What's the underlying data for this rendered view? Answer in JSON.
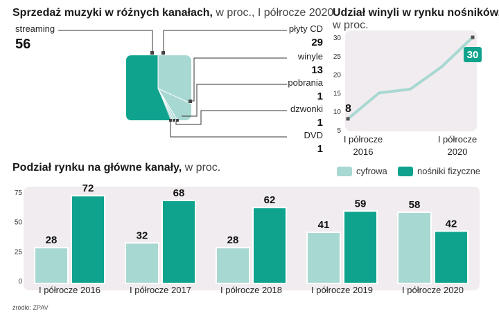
{
  "colors": {
    "digital": "#a8d8d2",
    "physical": "#0fa38e",
    "panel_bg": "#f1ecef",
    "line": "#a8d8d2",
    "leader": "#333333"
  },
  "panel1": {
    "title_bold": "Sprzedaż muzyki w różnych kanałach,",
    "title_rest": " w proc., I półrocze 2020"
  },
  "panel2": {
    "title_bold": "Udział winyli w rynku nośników,",
    "title_rest": "w proc."
  },
  "panel3": {
    "title_bold": "Podział rynku na główne kanały,",
    "title_rest": " w proc."
  },
  "legend": {
    "digital": "cyfrowa",
    "physical": "nośniki fizyczne"
  },
  "source": "źródło: ZPAV",
  "chart_data": [
    {
      "type": "pie",
      "title": "Sprzedaż muzyki w różnych kanałach, w proc., I półrocze 2020",
      "slices": [
        {
          "label": "streaming",
          "value": 56,
          "value_label": "56",
          "group": "physical"
        },
        {
          "label": "płyty CD",
          "value": 29,
          "value_label": "29",
          "group": "digital"
        },
        {
          "label": "winyle",
          "value": 13,
          "value_label": "13",
          "group": "digital"
        },
        {
          "label": "pobrania",
          "value": 1,
          "value_label": "1",
          "group": "digital"
        },
        {
          "label": "dzwonki",
          "value": 1,
          "value_label": "1",
          "group": "digital"
        },
        {
          "label": "DVD",
          "value": 1,
          "value_label": "1",
          "group": "digital"
        }
      ]
    },
    {
      "type": "line",
      "title": "Udział winyli w rynku nośników, w proc.",
      "x": [
        2016,
        2017,
        2018,
        2019,
        2020
      ],
      "values": [
        8,
        15,
        16,
        22,
        30
      ],
      "ylim": [
        5,
        30
      ],
      "yticks": [
        "30",
        "25",
        "20",
        "15",
        "10",
        "5"
      ],
      "xtick_labels": [
        [
          "I półrocze",
          "2016"
        ],
        [
          "I półrocze",
          "2020"
        ]
      ],
      "start_label": "8",
      "end_label": "30"
    },
    {
      "type": "bar",
      "title": "Podział rynku na główne kanały, w proc.",
      "categories": [
        "I półrocze 2016",
        "I półrocze 2017",
        "I półrocze 2018",
        "I półrocze 2019",
        "I półrocze 2020"
      ],
      "series": [
        {
          "name": "cyfrowa",
          "values": [
            28,
            32,
            28,
            41,
            58
          ],
          "labels": [
            "28",
            "32",
            "28",
            "41",
            "58"
          ]
        },
        {
          "name": "nośniki fizyczne",
          "values": [
            72,
            68,
            62,
            59,
            42
          ],
          "labels": [
            "72",
            "68",
            "62",
            "59",
            "42"
          ]
        }
      ],
      "ylim": [
        0,
        75
      ],
      "yticks": [
        "75",
        "50",
        "25",
        "0"
      ]
    }
  ]
}
